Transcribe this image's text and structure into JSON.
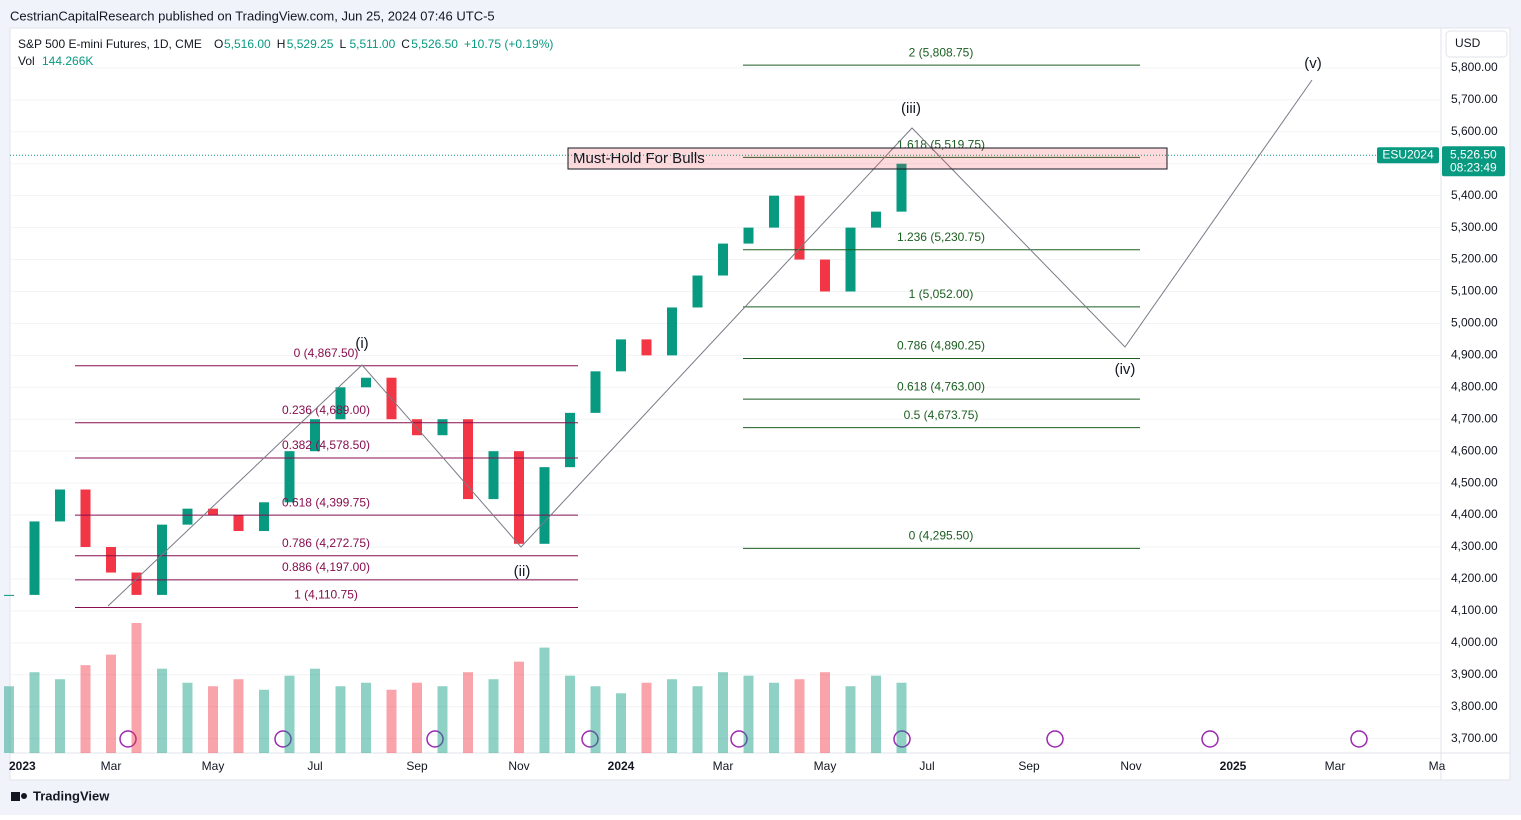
{
  "header": {
    "publisher": "CestrianCapitalResearch published on TradingView.com, Jun 25, 2024 07:46 UTC-5",
    "symbol": "S&P 500 E-mini Futures, 1D, CME",
    "ohlc": [
      {
        "key": "O",
        "value": "5,516.00"
      },
      {
        "key": "H",
        "value": "5,529.25"
      },
      {
        "key": "L",
        "value": "5,511.00"
      },
      {
        "key": "C",
        "value": "5,526.50"
      }
    ],
    "change": "+10.75 (+0.19%)",
    "vol_label": "Vol",
    "vol_value": "144.266K",
    "currency": "USD"
  },
  "chart_data": {
    "type": "candlestick",
    "categories": [
      "2023",
      null,
      null,
      null,
      "Mar",
      null,
      null,
      null,
      "May",
      null,
      null,
      null,
      "Jul",
      null,
      null,
      null,
      "Sep",
      null,
      null,
      null,
      "Nov",
      null,
      null,
      null,
      "2024",
      null,
      null,
      null,
      "Mar",
      null,
      null,
      null,
      "May",
      null,
      null,
      null,
      "Jul",
      null,
      null,
      null,
      "Sep",
      null,
      null,
      null,
      "Nov",
      null,
      null,
      null,
      "2025",
      null,
      null,
      null,
      "Mar",
      null,
      null,
      null,
      "Ma"
    ],
    "values": [
      4150,
      4380,
      4480,
      4300,
      4220,
      4150,
      4370,
      4420,
      4400,
      4350,
      4440,
      4600,
      4700,
      4800,
      4830,
      4700,
      4650,
      4700,
      4450,
      4600,
      4310,
      4550,
      4720,
      4850,
      4950,
      4900,
      5050,
      5150,
      5250,
      5300,
      5400,
      5200,
      5100,
      5300,
      5350,
      5500,
      null,
      null,
      null,
      null,
      null,
      null,
      null,
      null,
      null,
      null,
      null,
      null,
      null,
      null,
      null,
      null,
      null,
      null,
      null,
      null,
      null
    ],
    "volume": [
      190,
      230,
      210,
      250,
      280,
      370,
      240,
      200,
      190,
      210,
      180,
      220,
      240,
      190,
      200,
      180,
      200,
      190,
      230,
      210,
      260,
      300,
      220,
      190,
      170,
      200,
      210,
      190,
      230,
      220,
      200,
      210,
      230,
      190,
      220,
      200,
      null,
      null,
      null,
      null,
      null,
      null,
      null,
      null,
      null,
      null,
      null,
      null,
      null,
      null,
      null,
      null,
      null,
      null,
      null,
      null,
      null
    ],
    "up_color": "#089981",
    "down_color": "#f23645",
    "ylim": [
      3655,
      5925
    ],
    "yticks": [
      {
        "value": 3700,
        "label": "3,700.00"
      },
      {
        "value": 3800,
        "label": "3,800.00"
      },
      {
        "value": 3900,
        "label": "3,900.00"
      },
      {
        "value": 4000,
        "label": "4,000.00"
      },
      {
        "value": 4100,
        "label": "4,100.00"
      },
      {
        "value": 4200,
        "label": "4,200.00"
      },
      {
        "value": 4300,
        "label": "4,300.00"
      },
      {
        "value": 4400,
        "label": "4,400.00"
      },
      {
        "value": 4500,
        "label": "4,500.00"
      },
      {
        "value": 4600,
        "label": "4,600.00"
      },
      {
        "value": 4700,
        "label": "4,700.00"
      },
      {
        "value": 4800,
        "label": "4,800.00"
      },
      {
        "value": 4900,
        "label": "4,900.00"
      },
      {
        "value": 5000,
        "label": "5,000.00"
      },
      {
        "value": 5100,
        "label": "5,100.00"
      },
      {
        "value": 5200,
        "label": "5,200.00"
      },
      {
        "value": 5300,
        "label": "5,300.00"
      },
      {
        "value": 5400,
        "label": "5,400.00"
      },
      {
        "value": 5500,
        "label": "5,500.00"
      },
      {
        "value": 5600,
        "label": "5,600.00"
      },
      {
        "value": 5700,
        "label": "5,700.00"
      },
      {
        "value": 5800,
        "label": "5,800.00"
      }
    ],
    "price_tag": {
      "symbol": "ESU2024",
      "value": 5526.5,
      "label": "5,526.50",
      "countdown": "08:23:49"
    },
    "fib_left": [
      {
        "label": "0 (4,867.50)",
        "value": 4867.5
      },
      {
        "label": "0.236 (4,689.00)",
        "value": 4689
      },
      {
        "label": "0.382 (4,578.50)",
        "value": 4578.5
      },
      {
        "label": "0.618 (4,399.75)",
        "value": 4399.75
      },
      {
        "label": "0.786 (4,272.75)",
        "value": 4272.75
      },
      {
        "label": "0.886 (4,197.00)",
        "value": 4197
      },
      {
        "label": "1 (4,110.75)",
        "value": 4110.75
      }
    ],
    "fib_right": [
      {
        "label": "2 (5,808.75)",
        "value": 5808.75
      },
      {
        "label": "1.618 (5,519.75)",
        "value": 5519.75
      },
      {
        "label": "1.236 (5,230.75)",
        "value": 5230.75
      },
      {
        "label": "1 (5,052.00)",
        "value": 5052
      },
      {
        "label": "0.786 (4,890.25)",
        "value": 4890.25
      },
      {
        "label": "0.618 (4,763.00)",
        "value": 4763
      },
      {
        "label": "0.5 (4,673.75)",
        "value": 4673.75
      },
      {
        "label": "0 (4,295.50)",
        "value": 4295.5
      }
    ],
    "waves": [
      "(i)",
      "(ii)",
      "(iii)",
      "(iv)",
      "(v)"
    ],
    "annotation": "Must-Hold For Bulls"
  },
  "footer": "TradingView"
}
